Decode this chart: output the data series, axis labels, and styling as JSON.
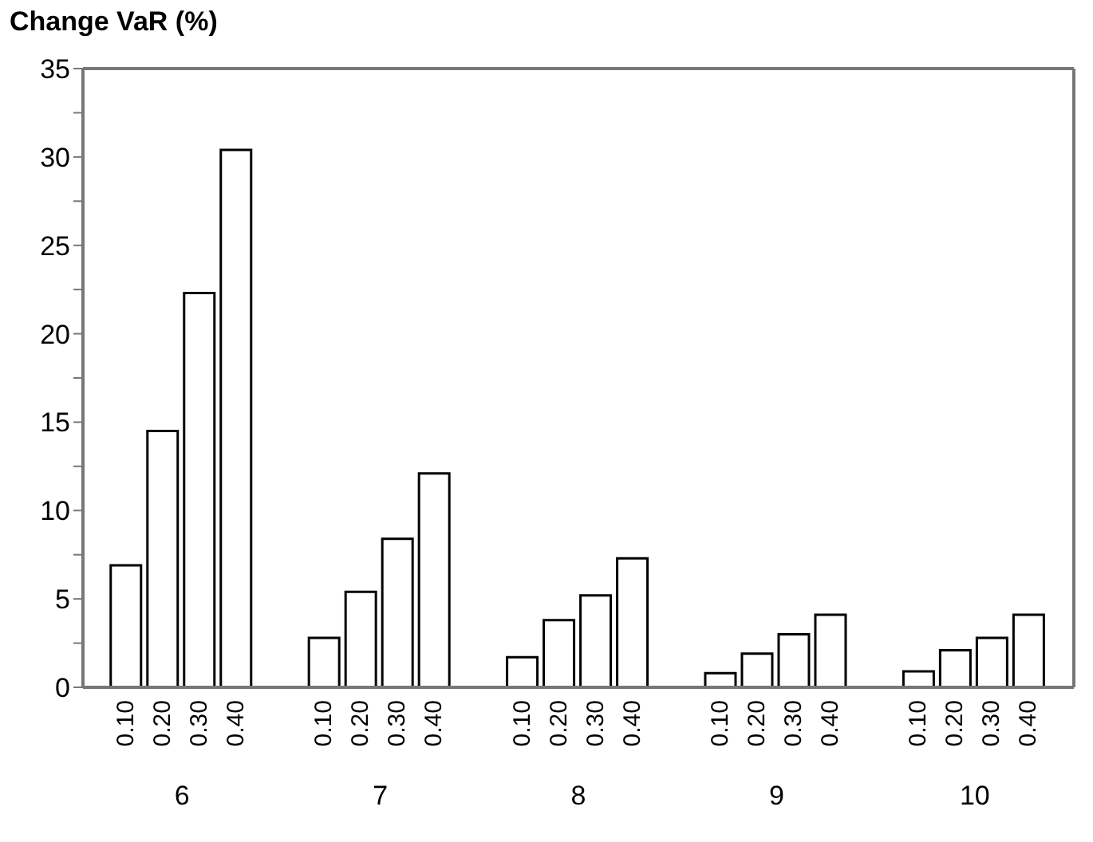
{
  "chart_data": {
    "type": "bar",
    "ylabel": "Change VaR (%)",
    "categories": [
      "6",
      "7",
      "8",
      "9",
      "10"
    ],
    "series": [
      {
        "name": "0.10",
        "color": "#ffffff",
        "values": [
          6.9,
          2.8,
          1.7,
          0.8,
          0.9
        ]
      },
      {
        "name": "0.20",
        "color": "#ffffff",
        "values": [
          14.5,
          5.4,
          3.8,
          1.9,
          2.1
        ]
      },
      {
        "name": "0.30",
        "color": "#ffffff",
        "values": [
          22.3,
          8.4,
          5.2,
          3.0,
          2.8
        ]
      },
      {
        "name": "0.40",
        "color": "#ffffff",
        "values": [
          30.4,
          12.1,
          7.3,
          4.1,
          4.1
        ]
      }
    ],
    "ylim": [
      0,
      35
    ],
    "yticks": [
      0,
      {
        "value": 2.5,
        "label": null
      },
      5,
      {
        "value": 7.5,
        "label": null
      },
      10,
      {
        "value": 12.5,
        "label": null
      },
      15,
      {
        "value": 17.5,
        "label": null
      },
      20,
      {
        "value": 22.5,
        "label": null
      },
      25,
      {
        "value": 27.5,
        "label": null
      },
      30,
      {
        "value": 32.5,
        "label": null
      },
      35
    ],
    "grid": false
  }
}
